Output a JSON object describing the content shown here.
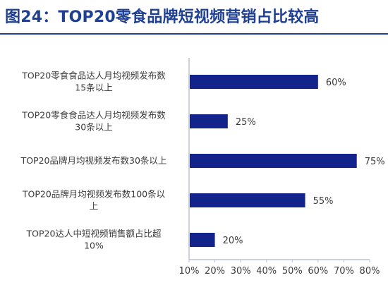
{
  "figure": {
    "title": "图24：TOP20零食品牌短视频营销占比较高"
  },
  "colors": {
    "title": "#1f3f93",
    "bar": "#13238c",
    "axis": "#b9c2dc",
    "text": "#3b3b3b"
  },
  "chart_data": {
    "type": "bar",
    "orientation": "horizontal",
    "categories": [
      [
        "TOP20零食食品达人月均视频发布数",
        "15条以上"
      ],
      [
        "TOP20零食食品达人月均视频发布数",
        "30条以上"
      ],
      [
        "TOP20品牌月均视频发布数30条以上"
      ],
      [
        "TOP20品牌月均视频发布数100条以",
        "上"
      ],
      [
        "TOP20达人中短视频销售额占比超",
        "10%"
      ]
    ],
    "values": [
      60,
      25,
      75,
      55,
      20
    ],
    "data_labels": [
      "60%",
      "25%",
      "75%",
      "55%",
      "20%"
    ],
    "xlim": [
      10,
      80
    ],
    "xticks": [
      10,
      20,
      30,
      40,
      50,
      60,
      70,
      80
    ],
    "xtick_labels": [
      "10%",
      "20%",
      "30%",
      "40%",
      "50%",
      "60%",
      "70%",
      "80%"
    ],
    "title": "",
    "xlabel": "",
    "ylabel": "",
    "grid": false,
    "legend": "none"
  }
}
